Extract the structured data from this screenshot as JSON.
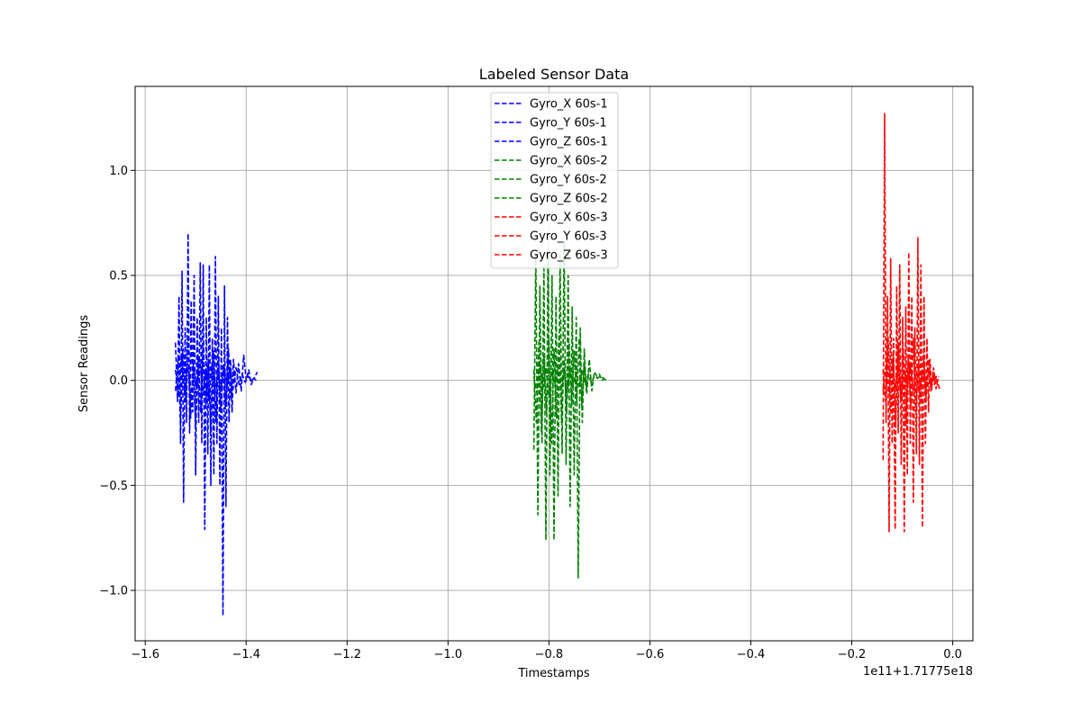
{
  "chart_data": {
    "type": "line",
    "title": "Labeled Sensor Data",
    "xlabel": "Timestamps",
    "ylabel": "Sensor Readings",
    "offset_text": "1e11+1.71775e18",
    "xlim": [
      -1.62,
      0.04
    ],
    "ylim": [
      -1.24,
      1.4
    ],
    "xticks": [
      -1.6,
      -1.4,
      -1.2,
      -1.0,
      -0.8,
      -0.6,
      -0.4,
      -0.2,
      0.0
    ],
    "xtick_labels": [
      "−1.6",
      "−1.4",
      "−1.2",
      "−1.0",
      "−0.8",
      "−0.6",
      "−0.4",
      "−0.2",
      "0.0"
    ],
    "yticks": [
      -1.0,
      -0.5,
      0.0,
      0.5,
      1.0
    ],
    "ytick_labels": [
      "−1.0",
      "−0.5",
      "0.0",
      "0.5",
      "1.0"
    ],
    "grid": true,
    "legend_position": "top-center",
    "line_style": "dashed",
    "series": [
      {
        "name": "Gyro_X 60s-1",
        "color": "#0000ff",
        "x": [
          -1.54,
          -1.536,
          -1.533,
          -1.53,
          -1.527,
          -1.524,
          -1.521,
          -1.518,
          -1.515,
          -1.512,
          -1.509,
          -1.506,
          -1.503,
          -1.5,
          -1.497,
          -1.494,
          -1.491,
          -1.488,
          -1.485,
          -1.482,
          -1.479,
          -1.476,
          -1.473,
          -1.47,
          -1.467,
          -1.464,
          -1.461,
          -1.458,
          -1.455,
          -1.452,
          -1.449,
          -1.446,
          -1.443,
          -1.44,
          -1.437,
          -1.434,
          -1.431,
          -1.428,
          -1.425,
          -1.422
        ],
        "y": [
          0.18,
          -0.1,
          0.4,
          -0.3,
          0.52,
          -0.58,
          0.25,
          -0.2,
          0.7,
          -0.25,
          0.38,
          -0.15,
          0.5,
          -0.45,
          0.3,
          -0.2,
          0.56,
          -0.3,
          0.55,
          -0.71,
          0.3,
          -0.35,
          0.55,
          -0.5,
          0.2,
          -0.45,
          0.59,
          -0.3,
          0.4,
          -0.5,
          0.25,
          -1.12,
          0.45,
          -0.6,
          0.3,
          -0.2,
          0.1,
          -0.15,
          0.05,
          0.02
        ]
      },
      {
        "name": "Gyro_Y 60s-1",
        "color": "#0000ff",
        "x": [
          -1.54,
          -1.535,
          -1.53,
          -1.525,
          -1.52,
          -1.515,
          -1.51,
          -1.505,
          -1.5,
          -1.495,
          -1.49,
          -1.485,
          -1.48,
          -1.475,
          -1.47,
          -1.465,
          -1.46,
          -1.455,
          -1.45,
          -1.445,
          -1.44,
          -1.435,
          -1.43,
          -1.425,
          -1.42,
          -1.415,
          -1.41,
          -1.405,
          -1.4,
          -1.395,
          -1.39,
          -1.385,
          -1.38
        ],
        "y": [
          -0.05,
          0.1,
          -0.2,
          0.15,
          -0.1,
          0.2,
          -0.18,
          0.08,
          -0.22,
          0.12,
          -0.15,
          0.18,
          -0.12,
          0.1,
          -0.25,
          0.14,
          -0.2,
          0.1,
          -0.15,
          0.08,
          -0.12,
          0.15,
          -0.08,
          0.1,
          -0.06,
          0.08,
          -0.05,
          0.12,
          0.0,
          0.05,
          -0.02,
          0.01,
          0.0
        ]
      },
      {
        "name": "Gyro_Z 60s-1",
        "color": "#0000ff",
        "x": [
          -1.54,
          -1.534,
          -1.528,
          -1.522,
          -1.516,
          -1.51,
          -1.504,
          -1.498,
          -1.492,
          -1.486,
          -1.48,
          -1.474,
          -1.468,
          -1.462,
          -1.456,
          -1.45,
          -1.444,
          -1.438,
          -1.432,
          -1.426,
          -1.42,
          -1.414,
          -1.408,
          -1.402,
          -1.396,
          -1.39,
          -1.384,
          -1.378
        ],
        "y": [
          0.05,
          -0.08,
          0.12,
          -0.05,
          0.08,
          -0.1,
          0.06,
          -0.04,
          0.1,
          -0.07,
          0.05,
          -0.09,
          0.08,
          -0.06,
          0.04,
          -0.05,
          0.07,
          -0.03,
          0.05,
          -0.04,
          0.06,
          -0.02,
          0.03,
          -0.01,
          0.02,
          0.0,
          0.01,
          0.04
        ]
      },
      {
        "name": "Gyro_X 60s-2",
        "color": "#008000",
        "x": [
          -0.83,
          -0.826,
          -0.822,
          -0.818,
          -0.814,
          -0.81,
          -0.806,
          -0.802,
          -0.798,
          -0.794,
          -0.79,
          -0.786,
          -0.782,
          -0.778,
          -0.774,
          -0.77,
          -0.766,
          -0.762,
          -0.758,
          -0.754,
          -0.75,
          -0.746,
          -0.742,
          -0.738,
          -0.734,
          -0.73,
          -0.726,
          -0.722
        ],
        "y": [
          -0.33,
          0.6,
          -0.64,
          0.45,
          -0.3,
          0.55,
          -0.76,
          0.62,
          -0.45,
          0.5,
          -0.76,
          0.4,
          -0.55,
          0.6,
          -0.35,
          0.66,
          -0.4,
          0.5,
          -0.6,
          0.35,
          -0.45,
          0.3,
          -0.94,
          0.25,
          -0.2,
          0.15,
          -0.05,
          0.02
        ]
      },
      {
        "name": "Gyro_Y 60s-2",
        "color": "#008000",
        "x": [
          -0.83,
          -0.825,
          -0.82,
          -0.815,
          -0.81,
          -0.805,
          -0.8,
          -0.795,
          -0.79,
          -0.785,
          -0.78,
          -0.775,
          -0.77,
          -0.765,
          -0.76,
          -0.755,
          -0.75,
          -0.745,
          -0.74,
          -0.735,
          -0.73,
          -0.725,
          -0.72,
          -0.715,
          -0.71,
          -0.705,
          -0.7,
          -0.695,
          -0.69
        ],
        "y": [
          0.05,
          -0.2,
          0.18,
          -0.25,
          0.12,
          -0.15,
          0.2,
          -0.3,
          0.15,
          -0.18,
          0.22,
          -0.2,
          0.1,
          -0.15,
          0.18,
          -0.12,
          0.14,
          -0.1,
          0.2,
          -0.12,
          0.08,
          -0.06,
          0.1,
          -0.05,
          0.04,
          0.02,
          0.03,
          0.0,
          0.01
        ]
      },
      {
        "name": "Gyro_Z 60s-2",
        "color": "#008000",
        "x": [
          -0.83,
          -0.824,
          -0.818,
          -0.812,
          -0.806,
          -0.8,
          -0.794,
          -0.788,
          -0.782,
          -0.776,
          -0.77,
          -0.764,
          -0.758,
          -0.752,
          -0.746,
          -0.74,
          -0.734,
          -0.728,
          -0.722,
          -0.716,
          -0.71,
          -0.704,
          -0.698,
          -0.692,
          -0.686
        ],
        "y": [
          0.02,
          -0.06,
          0.08,
          -0.04,
          0.06,
          -0.08,
          0.05,
          -0.03,
          0.07,
          -0.05,
          0.04,
          -0.06,
          0.05,
          -0.02,
          0.04,
          -0.03,
          0.05,
          -0.02,
          0.03,
          -0.01,
          0.02,
          0.01,
          0.02,
          0.01,
          0.0
        ]
      },
      {
        "name": "Gyro_X 60s-3",
        "color": "#ff0000",
        "x": [
          -0.138,
          -0.135,
          -0.132,
          -0.129,
          -0.126,
          -0.123,
          -0.12,
          -0.117,
          -0.114,
          -0.111,
          -0.108,
          -0.105,
          -0.102,
          -0.099,
          -0.096,
          -0.093,
          -0.09,
          -0.087,
          -0.084,
          -0.081,
          -0.078,
          -0.075,
          -0.072,
          -0.069,
          -0.066,
          -0.063,
          -0.06,
          -0.057,
          -0.054,
          -0.051,
          -0.048,
          -0.045,
          -0.042,
          -0.039,
          -0.036,
          -0.033,
          -0.03
        ],
        "y": [
          -0.38,
          1.27,
          -0.2,
          0.4,
          -0.72,
          0.58,
          -0.3,
          0.2,
          -0.71,
          0.45,
          -0.25,
          0.55,
          -0.4,
          0.3,
          -0.72,
          0.35,
          -0.45,
          0.61,
          -0.3,
          0.4,
          -0.58,
          0.25,
          -0.35,
          0.68,
          -0.4,
          0.55,
          -0.7,
          0.4,
          -0.3,
          0.2,
          -0.15,
          0.1,
          -0.05,
          0.04,
          -0.02,
          0.02,
          -0.03
        ]
      },
      {
        "name": "Gyro_Y 60s-3",
        "color": "#ff0000",
        "x": [
          -0.138,
          -0.133,
          -0.128,
          -0.123,
          -0.118,
          -0.113,
          -0.108,
          -0.103,
          -0.098,
          -0.093,
          -0.088,
          -0.083,
          -0.078,
          -0.073,
          -0.068,
          -0.063,
          -0.058,
          -0.053,
          -0.048,
          -0.043,
          -0.038,
          -0.033,
          -0.028
        ],
        "y": [
          0.05,
          -0.1,
          0.2,
          -0.15,
          0.12,
          -0.2,
          0.18,
          -0.1,
          0.15,
          -0.22,
          0.1,
          -0.12,
          0.2,
          -0.15,
          0.08,
          -0.1,
          0.12,
          -0.08,
          0.1,
          -0.05,
          0.06,
          -0.04,
          0.02
        ]
      },
      {
        "name": "Gyro_Z 60s-3",
        "color": "#ff0000",
        "x": [
          -0.138,
          -0.132,
          -0.126,
          -0.12,
          -0.114,
          -0.108,
          -0.102,
          -0.096,
          -0.09,
          -0.084,
          -0.078,
          -0.072,
          -0.066,
          -0.06,
          -0.054,
          -0.048,
          -0.042,
          -0.036,
          -0.03,
          -0.026
        ],
        "y": [
          -0.05,
          0.08,
          -0.06,
          0.1,
          -0.04,
          0.06,
          -0.08,
          0.05,
          -0.03,
          0.07,
          -0.05,
          0.04,
          -0.06,
          0.05,
          -0.02,
          0.04,
          -0.03,
          0.02,
          -0.01,
          -0.04
        ]
      }
    ]
  }
}
